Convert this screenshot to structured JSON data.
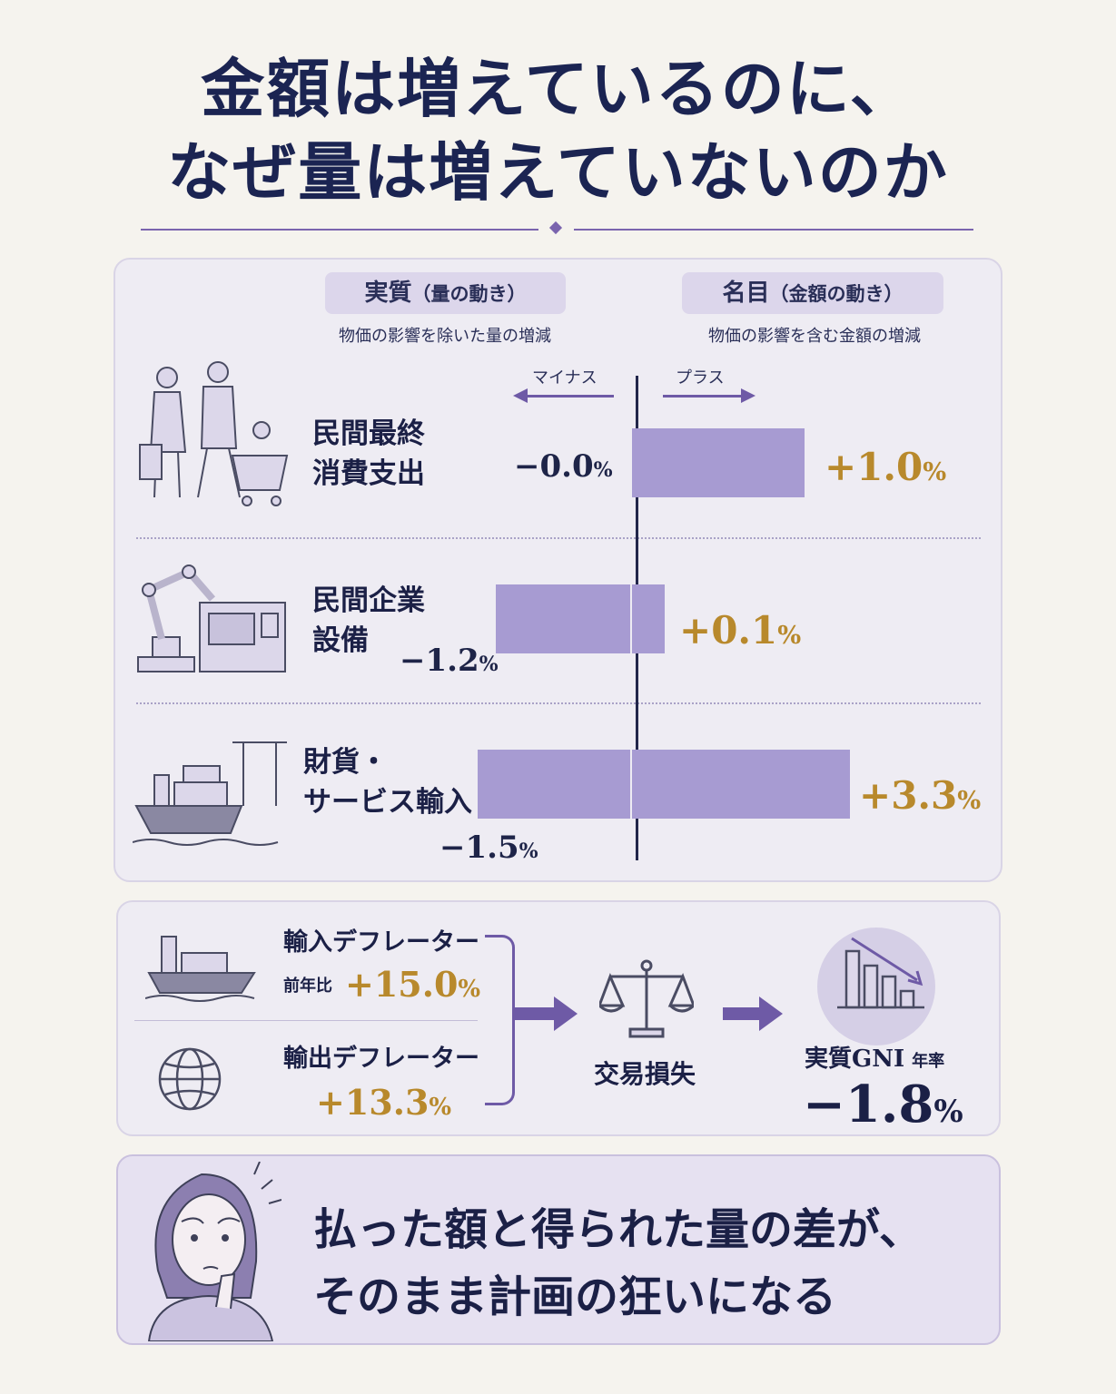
{
  "title": {
    "line1": "金額は増えているのに、",
    "line2": "なぜ量は増えていないのか"
  },
  "legend": {
    "real_label": "実質",
    "real_paren": "（量の動き）",
    "real_desc": "物価の影響を除いた量の増減",
    "nominal_label": "名目",
    "nominal_paren": "（金額の動き）",
    "nominal_desc": "物価の影響を含む金額の増減",
    "minus": "マイナス",
    "plus": "プラス"
  },
  "chart_data": {
    "type": "bar",
    "orientation": "horizontal-diverging",
    "categories": [
      "民間最終消費支出",
      "民間企業設備",
      "財貨・サービス輸入"
    ],
    "category_lines": [
      [
        "民間最終",
        "消費支出"
      ],
      [
        "民間企業",
        "設備"
      ],
      [
        "財貨・",
        "サービス輸入"
      ]
    ],
    "series": [
      {
        "name": "実質",
        "values": [
          -0.0,
          -1.2,
          -1.5
        ],
        "labels": [
          "−0.0",
          "−1.2",
          "−1.5"
        ],
        "color": "#a79bd2"
      },
      {
        "name": "名目",
        "values": [
          1.0,
          0.1,
          3.3
        ],
        "labels": [
          "+1.0",
          "+0.1",
          "+3.3"
        ],
        "color": "#a79bd2"
      }
    ],
    "unit": "%",
    "xlim": [
      -1.5,
      3.3
    ]
  },
  "flow": {
    "import_label": "輸入デフレーター",
    "yoy": "前年比",
    "import_value": "+15.0",
    "export_label": "輸出デフレーター",
    "export_value": "+13.3",
    "unit": "%",
    "loss_label": "交易損失",
    "gni_label": "実質GNI",
    "gni_annual": "年率",
    "gni_value": "−1.8"
  },
  "conclusion": {
    "line1": "払った額と得られた量の差が、",
    "line2": "そのまま計画の狂いになる"
  },
  "colors": {
    "navy": "#1b2452",
    "purple": "#6e5aa6",
    "bar": "#a79bd2",
    "gold": "#b8892c"
  }
}
